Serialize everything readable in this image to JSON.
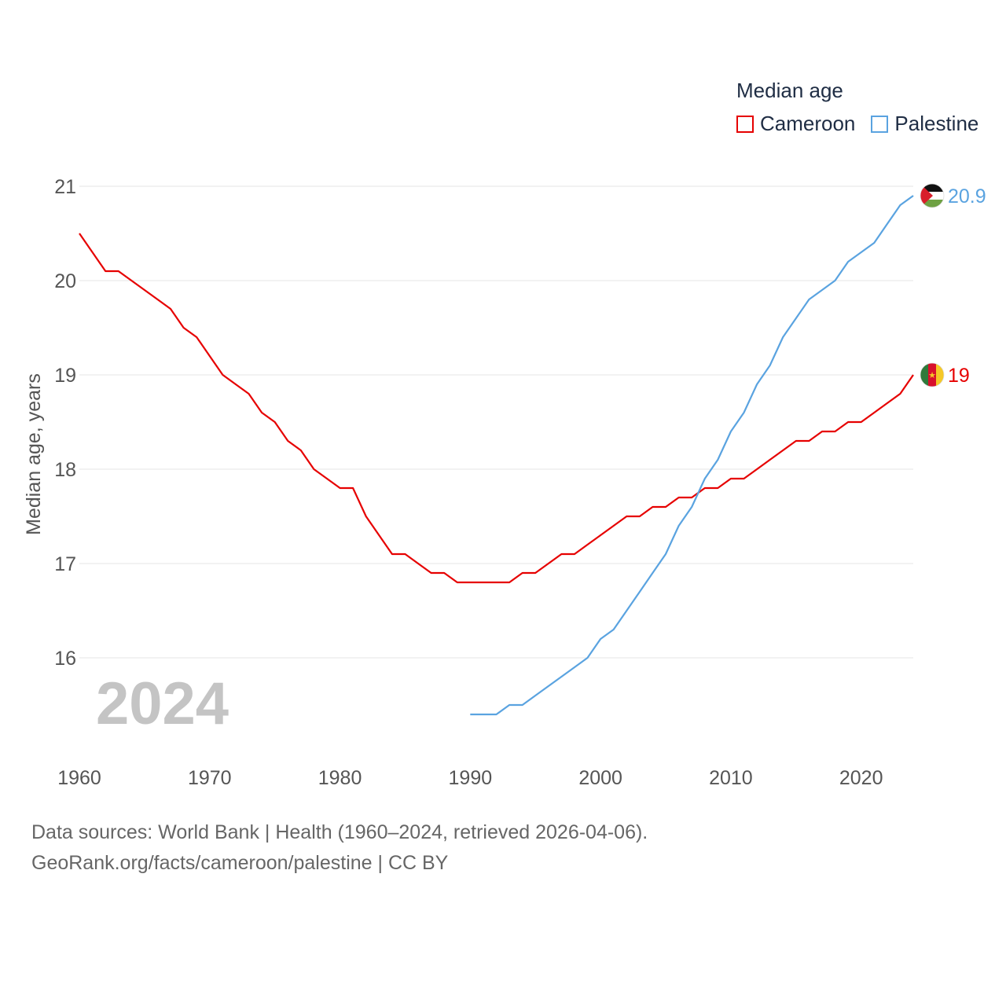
{
  "legend": {
    "title": "Median age",
    "items": [
      {
        "name": "Cameroon",
        "color": "#e60000"
      },
      {
        "name": "Palestine",
        "color": "#5aa3e0"
      }
    ]
  },
  "footer": {
    "line1": "Data sources: World Bank | Health (1960–2024, retrieved 2026-04-06).",
    "line2": "GeoRank.org/facts/cameroon/palestine | CC BY"
  },
  "chart_data": {
    "type": "line",
    "title": "",
    "xlabel": "",
    "ylabel": "Median age, years",
    "xlim": [
      1960,
      2024
    ],
    "ylim": [
      15,
      21.5
    ],
    "x_ticks": [
      1960,
      1970,
      1980,
      1990,
      2000,
      2010,
      2020
    ],
    "y_ticks": [
      16,
      17,
      18,
      19,
      20,
      21
    ],
    "grid": true,
    "year_label": "2024",
    "series": [
      {
        "name": "Cameroon",
        "color": "#e60000",
        "end_label": "19",
        "x": [
          1960,
          1961,
          1962,
          1963,
          1964,
          1965,
          1966,
          1967,
          1968,
          1969,
          1970,
          1971,
          1972,
          1973,
          1974,
          1975,
          1976,
          1977,
          1978,
          1979,
          1980,
          1981,
          1982,
          1983,
          1984,
          1985,
          1986,
          1987,
          1988,
          1989,
          1990,
          1991,
          1992,
          1993,
          1994,
          1995,
          1996,
          1997,
          1998,
          1999,
          2000,
          2001,
          2002,
          2003,
          2004,
          2005,
          2006,
          2007,
          2008,
          2009,
          2010,
          2011,
          2012,
          2013,
          2014,
          2015,
          2016,
          2017,
          2018,
          2019,
          2020,
          2021,
          2022,
          2023,
          2024
        ],
        "values": [
          20.5,
          20.3,
          20.1,
          20.1,
          20.0,
          19.9,
          19.8,
          19.7,
          19.5,
          19.4,
          19.2,
          19.0,
          18.9,
          18.8,
          18.6,
          18.5,
          18.3,
          18.2,
          18.0,
          17.9,
          17.8,
          17.8,
          17.5,
          17.3,
          17.1,
          17.1,
          17.0,
          16.9,
          16.9,
          16.8,
          16.8,
          16.8,
          16.8,
          16.8,
          16.9,
          16.9,
          17.0,
          17.1,
          17.1,
          17.2,
          17.3,
          17.4,
          17.5,
          17.5,
          17.6,
          17.6,
          17.7,
          17.7,
          17.8,
          17.8,
          17.9,
          17.9,
          18.0,
          18.1,
          18.2,
          18.3,
          18.3,
          18.4,
          18.4,
          18.5,
          18.5,
          18.6,
          18.7,
          18.8,
          19.0
        ]
      },
      {
        "name": "Palestine",
        "color": "#5aa3e0",
        "end_label": "20.9",
        "x": [
          1990,
          1991,
          1992,
          1993,
          1994,
          1995,
          1996,
          1997,
          1998,
          1999,
          2000,
          2001,
          2002,
          2003,
          2004,
          2005,
          2006,
          2007,
          2008,
          2009,
          2010,
          2011,
          2012,
          2013,
          2014,
          2015,
          2016,
          2017,
          2018,
          2019,
          2020,
          2021,
          2022,
          2023,
          2024
        ],
        "values": [
          15.4,
          15.4,
          15.4,
          15.5,
          15.5,
          15.6,
          15.7,
          15.8,
          15.9,
          16.0,
          16.2,
          16.3,
          16.5,
          16.7,
          16.9,
          17.1,
          17.4,
          17.6,
          17.9,
          18.1,
          18.4,
          18.6,
          18.9,
          19.1,
          19.4,
          19.6,
          19.8,
          19.9,
          20.0,
          20.2,
          20.3,
          20.4,
          20.6,
          20.8,
          20.9
        ]
      }
    ]
  }
}
